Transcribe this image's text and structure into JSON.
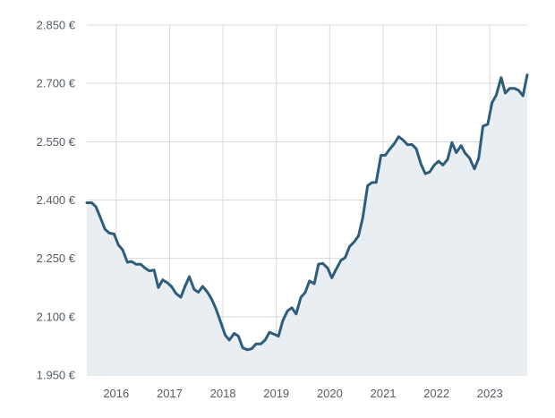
{
  "chart_data": {
    "type": "area",
    "title": "",
    "xlabel": "",
    "ylabel": "",
    "unit": "€",
    "ylim": [
      1950,
      2850
    ],
    "xlim": [
      2015.45,
      2023.7
    ],
    "grid": true,
    "line_color": "#2d5d7b",
    "fill_color": "#e9eef3",
    "grid_color": "#d9d9d9",
    "y_ticks": [
      {
        "value": 2850,
        "label": "2.850 €"
      },
      {
        "value": 2700,
        "label": "2.700 €"
      },
      {
        "value": 2550,
        "label": "2.550 €"
      },
      {
        "value": 2400,
        "label": "2.400 €"
      },
      {
        "value": 2250,
        "label": "2.250 €"
      },
      {
        "value": 2100,
        "label": "2.100 €"
      },
      {
        "value": 1950,
        "label": "1.950 €"
      }
    ],
    "x_ticks": [
      {
        "value": 2016,
        "label": "2016"
      },
      {
        "value": 2017,
        "label": "2017"
      },
      {
        "value": 2018,
        "label": "2018"
      },
      {
        "value": 2019,
        "label": "2019"
      },
      {
        "value": 2020,
        "label": "2020"
      },
      {
        "value": 2021,
        "label": "2021"
      },
      {
        "value": 2022,
        "label": "2022"
      },
      {
        "value": 2023,
        "label": "2023"
      }
    ],
    "series": [
      {
        "x": [
          2015.45,
          2015.54,
          2015.62,
          2015.71,
          2015.79,
          2015.87,
          2015.96,
          2016.04,
          2016.12,
          2016.21,
          2016.29,
          2016.37,
          2016.46,
          2016.54,
          2016.62,
          2016.71,
          2016.79,
          2016.87,
          2016.96,
          2017.04,
          2017.12,
          2017.21,
          2017.29,
          2017.37,
          2017.46,
          2017.54,
          2017.62,
          2017.71,
          2017.79,
          2017.87,
          2017.96,
          2018.04,
          2018.12,
          2018.21,
          2018.29,
          2018.37,
          2018.46,
          2018.54,
          2018.62,
          2018.71,
          2018.79,
          2018.87,
          2018.96,
          2019.04,
          2019.12,
          2019.21,
          2019.29,
          2019.37,
          2019.46,
          2019.54,
          2019.62,
          2019.71,
          2019.79,
          2019.87,
          2019.96,
          2020.04,
          2020.12,
          2020.21,
          2020.29,
          2020.37,
          2020.46,
          2020.54,
          2020.62,
          2020.71,
          2020.79,
          2020.87,
          2020.96,
          2021.04,
          2021.12,
          2021.21,
          2021.29,
          2021.37,
          2021.46,
          2021.54,
          2021.62,
          2021.71,
          2021.79,
          2021.87,
          2021.96,
          2022.04,
          2022.12,
          2022.21,
          2022.29,
          2022.37,
          2022.46,
          2022.54,
          2022.62,
          2022.71,
          2022.79,
          2022.87,
          2022.96,
          2023.04,
          2023.12,
          2023.21,
          2023.29,
          2023.37,
          2023.46,
          2023.54,
          2023.62,
          2023.7
        ],
        "values": [
          2393,
          2393,
          2383,
          2353,
          2325,
          2315,
          2313,
          2285,
          2272,
          2240,
          2242,
          2235,
          2235,
          2225,
          2218,
          2220,
          2175,
          2195,
          2187,
          2177,
          2160,
          2150,
          2178,
          2203,
          2170,
          2163,
          2178,
          2163,
          2145,
          2120,
          2085,
          2053,
          2040,
          2057,
          2050,
          2020,
          2015,
          2018,
          2030,
          2030,
          2040,
          2060,
          2055,
          2050,
          2090,
          2115,
          2123,
          2107,
          2150,
          2162,
          2192,
          2185,
          2235,
          2237,
          2225,
          2200,
          2222,
          2245,
          2252,
          2280,
          2293,
          2308,
          2355,
          2437,
          2445,
          2445,
          2515,
          2515,
          2530,
          2545,
          2563,
          2555,
          2542,
          2543,
          2532,
          2492,
          2468,
          2472,
          2490,
          2500,
          2490,
          2505,
          2548,
          2522,
          2540,
          2520,
          2508,
          2480,
          2507,
          2590,
          2595,
          2650,
          2670,
          2715,
          2675,
          2687,
          2687,
          2682,
          2668,
          2722
        ]
      }
    ]
  }
}
